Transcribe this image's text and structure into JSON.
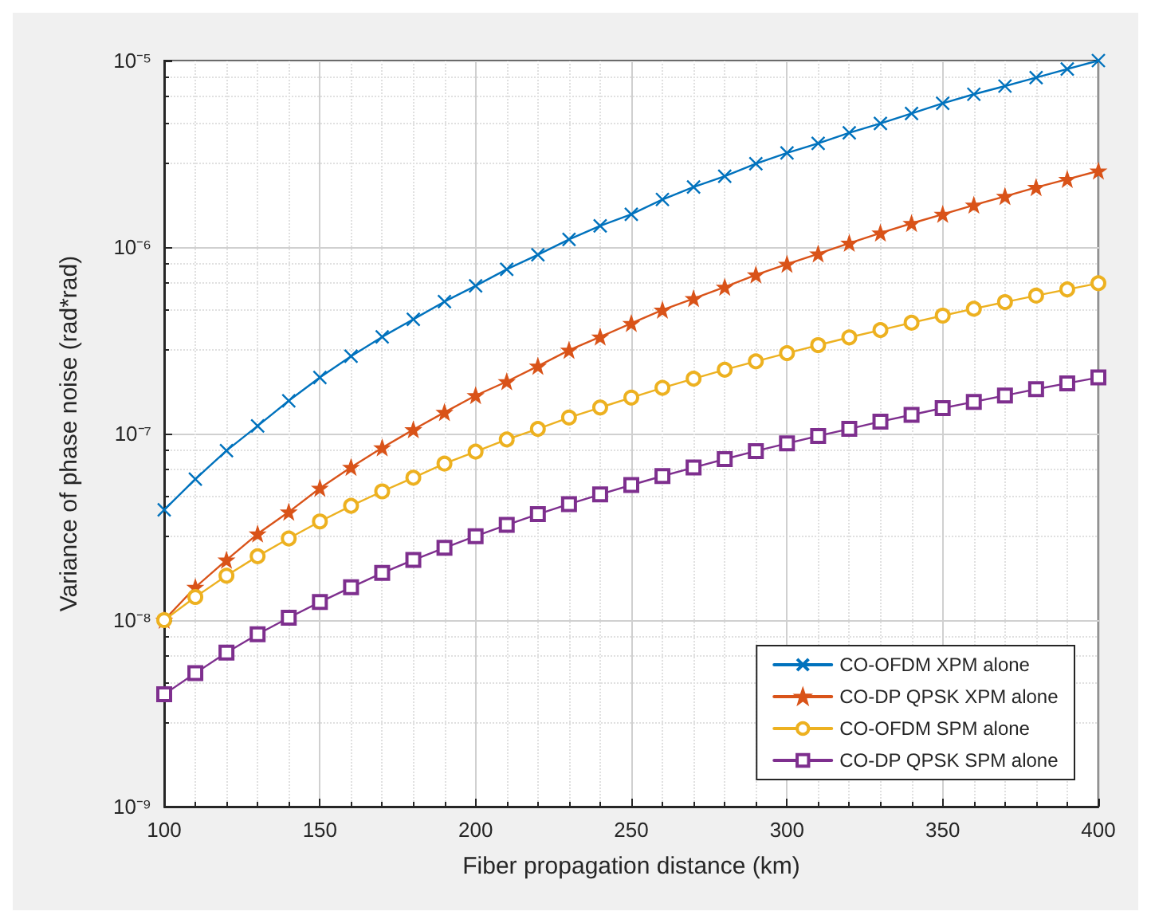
{
  "chart_data": {
    "type": "line",
    "xlabel": "Fiber propagation distance (km)",
    "ylabel": "Variance of phase noise (rad*rad)",
    "x": [
      100,
      110,
      120,
      130,
      140,
      150,
      160,
      170,
      180,
      190,
      200,
      210,
      220,
      230,
      240,
      250,
      260,
      270,
      280,
      290,
      300,
      310,
      320,
      330,
      340,
      350,
      360,
      370,
      380,
      390,
      400
    ],
    "series": [
      {
        "name": "CO-OFDM XPM alone",
        "color": "#0072bd",
        "marker": "cross",
        "values": [
          3.9e-08,
          5.7e-08,
          8.1e-08,
          1.1e-07,
          1.5e-07,
          2e-07,
          2.6e-07,
          3.3e-07,
          4.1e-07,
          5.1e-07,
          6.2e-07,
          7.6e-07,
          9.1e-07,
          1.1e-06,
          1.3e-06,
          1.5e-06,
          1.8e-06,
          2.1e-06,
          2.4e-06,
          2.8e-06,
          3.2e-06,
          3.6e-06,
          4.1e-06,
          4.6e-06,
          5.2e-06,
          5.9e-06,
          6.6e-06,
          7.3e-06,
          8.1e-06,
          9e-06,
          1e-05
        ]
      },
      {
        "name": "CO-DP QPSK XPM alone",
        "color": "#d95319",
        "marker": "star",
        "values": [
          1e-08,
          1.5e-08,
          2.1e-08,
          2.9e-08,
          3.8e-08,
          5.1e-08,
          6.6e-08,
          8.4e-08,
          1.05e-07,
          1.3e-07,
          1.6e-07,
          1.9e-07,
          2.3e-07,
          2.8e-07,
          3.3e-07,
          3.9e-07,
          4.6e-07,
          5.3e-07,
          6.1e-07,
          7.1e-07,
          8.1e-07,
          9.2e-07,
          1.05e-06,
          1.19e-06,
          1.34e-06,
          1.5e-06,
          1.68e-06,
          1.87e-06,
          2.09e-06,
          2.31e-06,
          2.56e-06
        ]
      },
      {
        "name": "CO-OFDM SPM alone",
        "color": "#edb120",
        "marker": "circle",
        "values": [
          1e-08,
          1.33e-08,
          1.73e-08,
          2.2e-08,
          2.74e-08,
          3.38e-08,
          4.1e-08,
          4.9e-08,
          5.8e-08,
          6.9e-08,
          8e-08,
          9.3e-08,
          1.06e-07,
          1.22e-07,
          1.38e-07,
          1.56e-07,
          1.76e-07,
          1.97e-07,
          2.2e-07,
          2.44e-07,
          2.7e-07,
          2.98e-07,
          3.28e-07,
          3.59e-07,
          3.93e-07,
          4.29e-07,
          4.67e-07,
          5.07e-07,
          5.49e-07,
          5.93e-07,
          6.4e-07
        ]
      },
      {
        "name": "CO-DP QPSK SPM alone",
        "color": "#7e2f8e",
        "marker": "square",
        "values": [
          4e-09,
          5.2e-09,
          6.7e-09,
          8.4e-09,
          1.03e-08,
          1.25e-08,
          1.5e-08,
          1.79e-08,
          2.1e-08,
          2.44e-08,
          2.82e-08,
          3.24e-08,
          3.7e-08,
          4.19e-08,
          4.72e-08,
          5.3e-08,
          5.92e-08,
          6.58e-08,
          7.3e-08,
          8.06e-08,
          8.86e-08,
          9.72e-08,
          1.06e-07,
          1.16e-07,
          1.26e-07,
          1.37e-07,
          1.48e-07,
          1.6e-07,
          1.73e-07,
          1.86e-07,
          2e-07
        ]
      }
    ],
    "xlim": [
      100,
      400
    ],
    "xticks": [
      100,
      150,
      200,
      250,
      300,
      350,
      400
    ],
    "ylim": [
      1e-09,
      1e-05
    ],
    "yticks": [
      {
        "value": 1e-09,
        "label": "10⁻⁹"
      },
      {
        "value": 1e-08,
        "label": "10⁻⁸"
      },
      {
        "value": 1e-07,
        "label": "10⁻⁷"
      },
      {
        "value": 1e-06,
        "label": "10⁻⁶"
      },
      {
        "value": 1e-05,
        "label": "10⁻⁵"
      }
    ],
    "log": "y",
    "grid": true,
    "legend": "bottom right",
    "line_style": "solid"
  }
}
